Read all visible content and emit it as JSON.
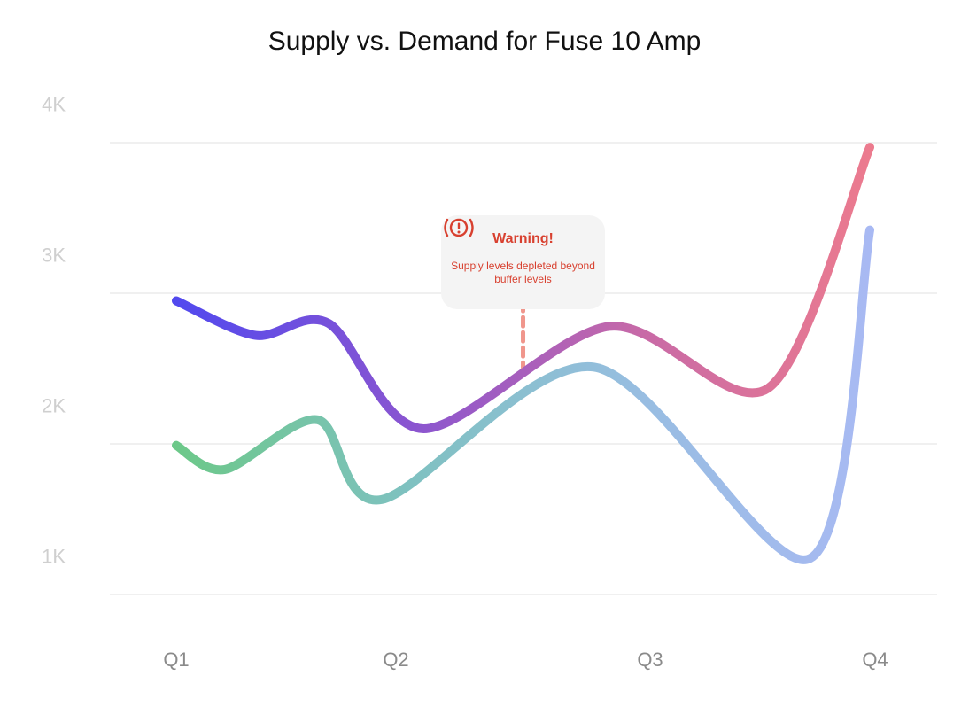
{
  "chart_data": {
    "type": "line",
    "title": "Supply vs. Demand for Fuse 10 Amp",
    "xlabel": "",
    "ylabel": "",
    "categories": [
      "Q1",
      "Q2",
      "Q3",
      "Q4"
    ],
    "x_range": [
      0.0,
      3.2
    ],
    "ylim": [
      0.75,
      4.0
    ],
    "yticks": [
      {
        "value": 1,
        "label": "1K"
      },
      {
        "value": 2,
        "label": "2K"
      },
      {
        "value": 3,
        "label": "3K"
      },
      {
        "value": 4,
        "label": "4K"
      }
    ],
    "grid_values": [
      0.75,
      1.75,
      2.75,
      3.75
    ],
    "grid": true,
    "legend": "none",
    "series": [
      {
        "colors": [
          "#5249ee",
          "#8a55d0",
          "#c96aa6",
          "#ee7c8d"
        ],
        "points": [
          [
            0.0,
            2.7
          ],
          [
            0.36,
            2.47
          ],
          [
            0.69,
            2.55
          ],
          [
            1.12,
            1.85
          ],
          [
            1.96,
            2.53
          ],
          [
            2.68,
            2.12
          ],
          [
            3.14,
            3.72
          ]
        ]
      },
      {
        "colors": [
          "#6cc889",
          "#7fc1c1",
          "#98bde2",
          "#a9b9f4"
        ],
        "points": [
          [
            0.0,
            1.74
          ],
          [
            0.22,
            1.58
          ],
          [
            0.64,
            1.91
          ],
          [
            0.93,
            1.38
          ],
          [
            1.89,
            2.26
          ],
          [
            2.87,
            0.99
          ],
          [
            3.14,
            3.17
          ]
        ]
      }
    ],
    "annotation": {
      "x": 1.57,
      "y_top": 2.69,
      "y_bottom": 2.21,
      "line_color": "#f0968c",
      "title": "Warning!",
      "text": "Supply levels depleted beyond buffer levels",
      "color": "#d8402f",
      "icon": "warning-exclamation-icon"
    }
  }
}
